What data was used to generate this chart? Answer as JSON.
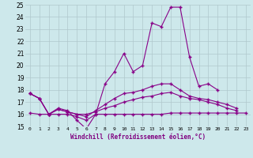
{
  "xlabel": "Windchill (Refroidissement éolien,°C)",
  "background_color": "#cde8eb",
  "grid_color": "#b0c8cc",
  "line_color": "#880088",
  "xlim": [
    -0.5,
    23.5
  ],
  "ylim": [
    15,
    25
  ],
  "x_ticks": [
    0,
    1,
    2,
    3,
    4,
    5,
    6,
    7,
    8,
    9,
    10,
    11,
    12,
    13,
    14,
    15,
    16,
    17,
    18,
    19,
    20,
    21,
    22,
    23
  ],
  "y_ticks": [
    15,
    16,
    17,
    18,
    19,
    20,
    21,
    22,
    23,
    24,
    25
  ],
  "line1": [
    17.7,
    17.3,
    16.0,
    16.5,
    16.3,
    15.5,
    14.8,
    16.0,
    18.5,
    19.5,
    21.0,
    19.5,
    20.0,
    23.5,
    23.2,
    24.8,
    24.8,
    20.7,
    18.3,
    18.5,
    18.0,
    null,
    null,
    null
  ],
  "line2": [
    17.7,
    17.3,
    16.0,
    16.4,
    16.2,
    16.0,
    15.8,
    16.3,
    16.8,
    17.3,
    17.7,
    17.8,
    18.0,
    18.3,
    18.5,
    18.5,
    18.0,
    17.5,
    17.3,
    17.2,
    17.0,
    16.8,
    16.5,
    null
  ],
  "line3": [
    17.7,
    17.3,
    16.0,
    16.4,
    16.2,
    16.0,
    16.0,
    16.2,
    16.5,
    16.7,
    17.0,
    17.2,
    17.4,
    17.5,
    17.7,
    17.8,
    17.5,
    17.3,
    17.2,
    17.0,
    16.8,
    16.5,
    16.3,
    null
  ],
  "line4": [
    16.1,
    16.0,
    16.0,
    16.0,
    16.0,
    15.8,
    15.5,
    16.0,
    16.0,
    16.0,
    16.0,
    16.0,
    16.0,
    16.0,
    16.0,
    16.1,
    16.1,
    16.1,
    16.1,
    16.1,
    16.1,
    16.1,
    16.1,
    16.1
  ]
}
